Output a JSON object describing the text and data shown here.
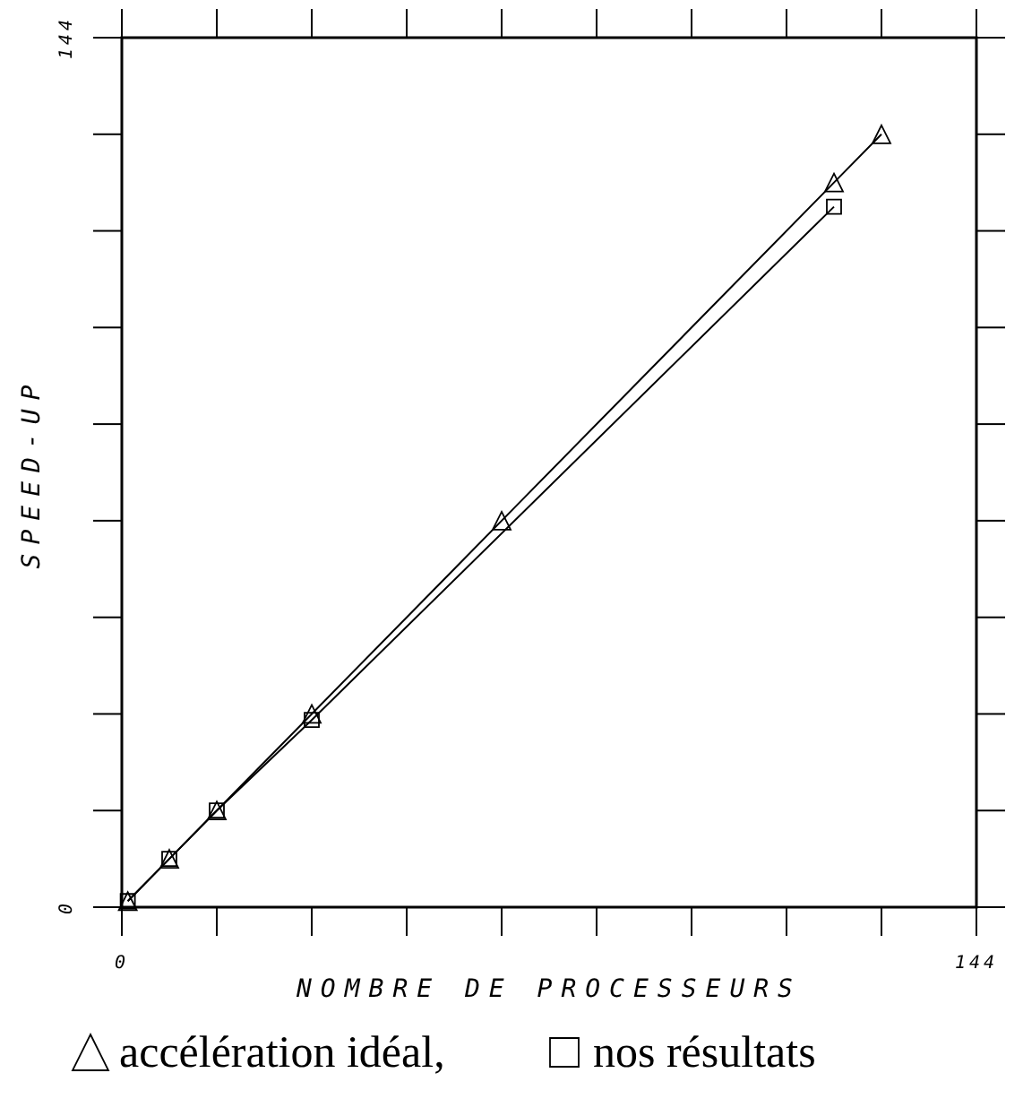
{
  "chart_data": {
    "type": "line",
    "xlabel": "NOMBRE DE PROCESSEURS",
    "ylabel": "SPEED-UP",
    "xlim": [
      0,
      144
    ],
    "ylim": [
      0,
      144
    ],
    "xticks": [
      0,
      {
        "value": 16,
        "label": null
      },
      {
        "value": 32,
        "label": null
      },
      {
        "value": 48,
        "label": null
      },
      {
        "value": 64,
        "label": null
      },
      {
        "value": 80,
        "label": null
      },
      {
        "value": 96,
        "label": null
      },
      {
        "value": 112,
        "label": null
      },
      {
        "value": 128,
        "label": null
      },
      144
    ],
    "yticks": [
      0,
      {
        "value": 16,
        "label": null
      },
      {
        "value": 32,
        "label": null
      },
      {
        "value": 48,
        "label": null
      },
      {
        "value": 64,
        "label": null
      },
      {
        "value": 80,
        "label": null
      },
      {
        "value": 96,
        "label": null
      },
      {
        "value": 112,
        "label": null
      },
      {
        "value": 128,
        "label": null
      },
      144
    ],
    "legend": "bottom",
    "grid": false,
    "series": [
      {
        "name": "accélération idéal,",
        "color": "#000000",
        "marker": "triangle",
        "x": [
          1,
          8,
          16,
          32,
          64,
          120,
          128
        ],
        "values": [
          1,
          8,
          16,
          32,
          64,
          120,
          128
        ]
      },
      {
        "name": "nos résultats",
        "color": "#000000",
        "marker": "square",
        "x": [
          1,
          8,
          16,
          32,
          120
        ],
        "values": [
          1,
          8,
          16,
          31,
          116
        ]
      }
    ]
  }
}
